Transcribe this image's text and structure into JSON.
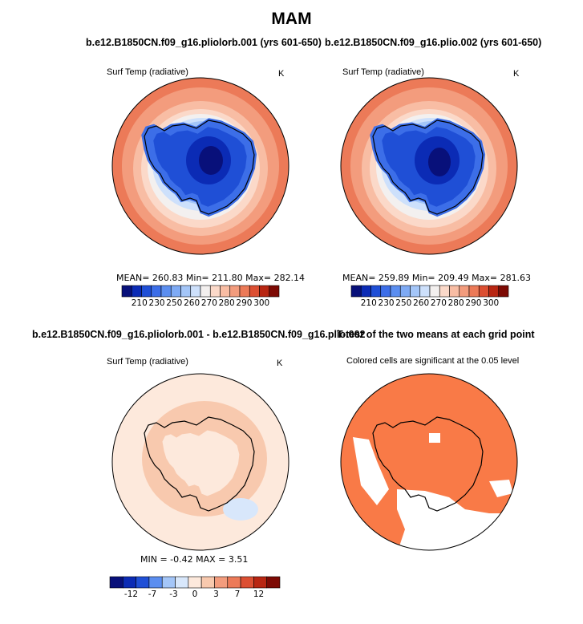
{
  "figure": {
    "title": "MAM",
    "panels": [
      {
        "title": "b.e12.B1850CN.f09_g16.pliolorb.001 (yrs 601-650)",
        "variable": "Surf Temp (radiative)",
        "units": "K",
        "stats": "MEAN= 260.83 Min= 211.80 Max= 282.14"
      },
      {
        "title": "b.e12.B1850CN.f09_g16.plio.002 (yrs 601-650)",
        "variable": "Surf Temp (radiative)",
        "units": "K",
        "stats": "MEAN= 259.89 Min= 209.49 Max= 281.63"
      },
      {
        "title": "b.e12.B1850CN.f09_g16.pliolorb.001 - b.e12.B1850CN.f09_g16.plio.002",
        "variable": "Surf Temp (radiative)",
        "units": "K",
        "stats": "MIN = -0.42 MAX = 3.51"
      },
      {
        "title": "T-test of the two means at each grid point",
        "note": "Colored cells are significant at the 0.05 level"
      }
    ],
    "colorbars": {
      "temperature": {
        "labels": [
          "210",
          "230",
          "250",
          "260",
          "270",
          "280",
          "290",
          "300"
        ],
        "colors": [
          "#08107a",
          "#0b2bb5",
          "#1f4fd6",
          "#3c6ee8",
          "#5b8ef0",
          "#7eaaf4",
          "#a4c6f8",
          "#cde0fb",
          "#f3f0ef",
          "#fbd9c9",
          "#f8bda4",
          "#f39c7d",
          "#ec7a58",
          "#dc4f32",
          "#b82612",
          "#7d0a04"
        ]
      },
      "difference": {
        "labels": [
          "-12",
          "-7",
          "-3",
          "0",
          "3",
          "7",
          "12"
        ],
        "colors": [
          "#08107a",
          "#0b2bb5",
          "#1f4fd6",
          "#5b8ef0",
          "#a4c6f8",
          "#d8e7fb",
          "#fde9dc",
          "#f8c9ae",
          "#f39c7d",
          "#ec7a58",
          "#dc4f32",
          "#b82612",
          "#7d0a04"
        ]
      },
      "significance_color": "#f97a47"
    }
  },
  "chart_data": [
    {
      "type": "heatmap",
      "title": "b.e12.B1850CN.f09_g16.pliolorb.001 (yrs 601-650)",
      "variable": "Surf Temp (radiative)",
      "units": "K",
      "projection": "south polar stereographic",
      "mean": 260.83,
      "min": 211.8,
      "max": 282.14,
      "colorbar_levels": [
        210,
        230,
        250,
        260,
        270,
        280,
        290,
        300
      ]
    },
    {
      "type": "heatmap",
      "title": "b.e12.B1850CN.f09_g16.plio.002 (yrs 601-650)",
      "variable": "Surf Temp (radiative)",
      "units": "K",
      "projection": "south polar stereographic",
      "mean": 259.89,
      "min": 209.49,
      "max": 281.63,
      "colorbar_levels": [
        210,
        230,
        250,
        260,
        270,
        280,
        290,
        300
      ]
    },
    {
      "type": "heatmap",
      "title": "b.e12.B1850CN.f09_g16.pliolorb.001 - b.e12.B1850CN.f09_g16.plio.002",
      "variable": "Surf Temp (radiative)",
      "units": "K",
      "projection": "south polar stereographic",
      "min": -0.42,
      "max": 3.51,
      "colorbar_levels": [
        -12,
        -7,
        -3,
        0,
        3,
        7,
        12
      ]
    },
    {
      "type": "heatmap",
      "title": "T-test of the two means at each grid point",
      "note": "Colored cells are significant at the 0.05 level",
      "projection": "south polar stereographic"
    }
  ]
}
